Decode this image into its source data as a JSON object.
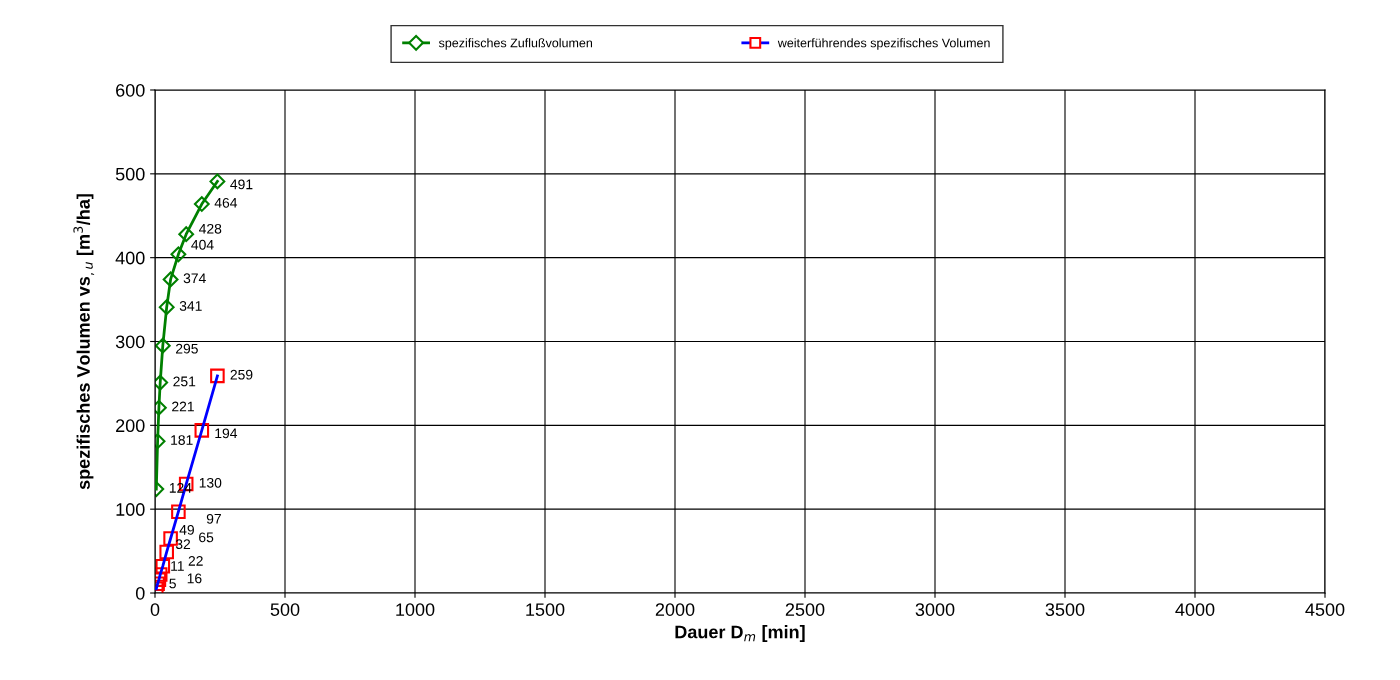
{
  "chart_data": {
    "type": "line",
    "xlabel": "Dauer D$_{m}$ [min]",
    "ylabel": "spezifisches Volumen vs$_{,u}$ [m$^{3}$/ha]",
    "xlim": [
      0,
      4500
    ],
    "xticks": [
      0,
      500,
      1000,
      1500,
      2000,
      2500,
      3000,
      3500,
      4000,
      4500
    ],
    "ylim": [
      0,
      600
    ],
    "yticks": [
      0,
      100,
      200,
      300,
      400,
      500,
      600
    ],
    "grid": true,
    "legend": "top",
    "data_labels": true,
    "series": [
      {
        "name": "spezifisches Zuflußvolumen",
        "color": "#008000",
        "marker": "diamond",
        "x": [
          5,
          10,
          15,
          20,
          30,
          45,
          60,
          90,
          120,
          180,
          240
        ],
        "values": [
          124,
          181,
          221,
          251,
          295,
          341,
          374,
          404,
          428,
          464,
          491
        ]
      },
      {
        "name": "weiterführendes spezifisches Volumen",
        "color": "#0000ff",
        "colors": [
          "#ff0000",
          "#ff0000",
          "#ff0000",
          "#ff0000",
          "#ff0000",
          "#ff0000",
          "#ff0000",
          "#ff0000",
          "#ff0000",
          "#ff0000",
          "#ff0000"
        ],
        "marker": "square",
        "x": [
          5,
          10,
          15,
          20,
          30,
          45,
          60,
          90,
          120,
          180,
          240
        ],
        "values": [
          5,
          11,
          16,
          22,
          32,
          49,
          65,
          97,
          130,
          194,
          259
        ]
      }
    ]
  }
}
